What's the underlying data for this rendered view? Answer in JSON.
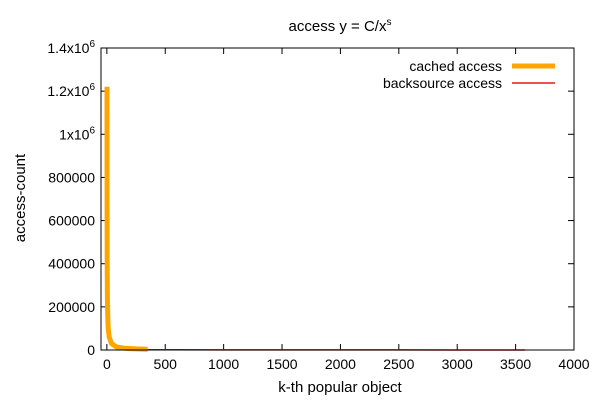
{
  "chart_data": {
    "type": "line",
    "title": "access y = C/x",
    "title_superscript": "s",
    "xlabel": "k-th popular object",
    "ylabel": "access-count",
    "xlim": [
      -50,
      4000
    ],
    "ylim": [
      0,
      1400000
    ],
    "x_ticks": [
      {
        "value": 0,
        "label": "0"
      },
      {
        "value": 500,
        "label": "500"
      },
      {
        "value": 1000,
        "label": "1000"
      },
      {
        "value": 1500,
        "label": "1500"
      },
      {
        "value": 2000,
        "label": "2000"
      },
      {
        "value": 2500,
        "label": "2500"
      },
      {
        "value": 3000,
        "label": "3000"
      },
      {
        "value": 3500,
        "label": "3500"
      },
      {
        "value": 4000,
        "label": "4000"
      }
    ],
    "y_ticks": [
      {
        "value": 0,
        "label": "0",
        "sup": ""
      },
      {
        "value": 200000,
        "label": "200000",
        "sup": ""
      },
      {
        "value": 400000,
        "label": "400000",
        "sup": ""
      },
      {
        "value": 600000,
        "label": "600000",
        "sup": ""
      },
      {
        "value": 800000,
        "label": "800000",
        "sup": ""
      },
      {
        "value": 1000000,
        "label": "1x10",
        "sup": "6"
      },
      {
        "value": 1200000,
        "label": "1.2x10",
        "sup": "6"
      },
      {
        "value": 1400000,
        "label": "1.4x10",
        "sup": "6"
      }
    ],
    "grid": false,
    "legend_position": "top-right",
    "series": [
      {
        "name": "cached access",
        "color": "#ffa500",
        "x": [
          1,
          2,
          3,
          5,
          8,
          12,
          20,
          40,
          80,
          150,
          250,
          350
        ],
        "y": [
          1220000,
          610000,
          400000,
          240000,
          150000,
          100000,
          60000,
          30000,
          15000,
          8000,
          5000,
          3500
        ]
      },
      {
        "name": "backsource access",
        "color": "#e41a1c",
        "x": [
          350,
          600,
          1000,
          1500,
          2000,
          2500,
          3000,
          3580
        ],
        "y": [
          1500,
          900,
          600,
          400,
          300,
          250,
          200,
          170
        ]
      }
    ]
  }
}
